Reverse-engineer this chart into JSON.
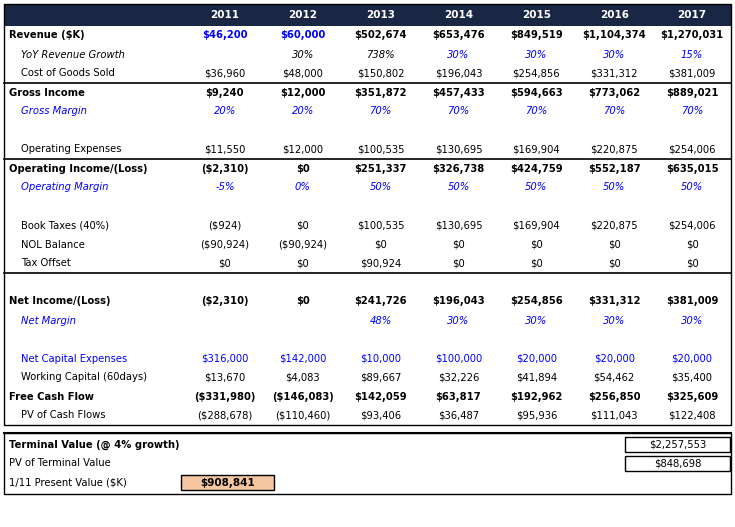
{
  "header_bg": "#1a2744",
  "header_text_color": "#ffffff",
  "black_text": "#000000",
  "blue_text": "#0000ff",
  "highlight_bg": "#f5c6a0",
  "years": [
    "2011",
    "2012",
    "2013",
    "2014",
    "2015",
    "2016",
    "2017"
  ],
  "rows": [
    {
      "label": "Revenue ($K)",
      "bold": true,
      "italic": false,
      "color": "black",
      "indent": 0,
      "values": [
        "$46,200",
        "$60,000",
        "$502,674",
        "$653,476",
        "$849,519",
        "$1,104,374",
        "$1,270,031"
      ],
      "val_colors": [
        "blue",
        "blue",
        "black",
        "black",
        "black",
        "black",
        "black"
      ],
      "border_top": false,
      "border_bottom": false
    },
    {
      "label": "YoY Revenue Growth",
      "bold": false,
      "italic": true,
      "color": "black",
      "indent": 1,
      "values": [
        "",
        "30%",
        "738%",
        "30%",
        "30%",
        "30%",
        "15%"
      ],
      "val_colors": [
        "black",
        "black",
        "black",
        "blue",
        "blue",
        "blue",
        "blue"
      ],
      "border_top": false,
      "border_bottom": false
    },
    {
      "label": "Cost of Goods Sold",
      "bold": false,
      "italic": false,
      "color": "black",
      "indent": 1,
      "values": [
        "$36,960",
        "$48,000",
        "$150,802",
        "$196,043",
        "$254,856",
        "$331,312",
        "$381,009"
      ],
      "val_colors": [
        "black",
        "black",
        "black",
        "black",
        "black",
        "black",
        "black"
      ],
      "border_top": false,
      "border_bottom": false
    },
    {
      "label": "Gross Income",
      "bold": true,
      "italic": false,
      "color": "black",
      "indent": 0,
      "values": [
        "$9,240",
        "$12,000",
        "$351,872",
        "$457,433",
        "$594,663",
        "$773,062",
        "$889,021"
      ],
      "val_colors": [
        "black",
        "black",
        "black",
        "black",
        "black",
        "black",
        "black"
      ],
      "border_top": true,
      "border_bottom": false
    },
    {
      "label": "Gross Margin",
      "bold": false,
      "italic": true,
      "color": "blue",
      "indent": 1,
      "values": [
        "20%",
        "20%",
        "70%",
        "70%",
        "70%",
        "70%",
        "70%"
      ],
      "val_colors": [
        "blue",
        "blue",
        "blue",
        "blue",
        "blue",
        "blue",
        "blue"
      ],
      "border_top": false,
      "border_bottom": false
    },
    {
      "label": "",
      "bold": false,
      "italic": false,
      "color": "black",
      "indent": 0,
      "values": [
        "",
        "",
        "",
        "",
        "",
        "",
        ""
      ],
      "val_colors": [
        "black",
        "black",
        "black",
        "black",
        "black",
        "black",
        "black"
      ],
      "border_top": false,
      "border_bottom": false
    },
    {
      "label": "Operating Expenses",
      "bold": false,
      "italic": false,
      "color": "black",
      "indent": 1,
      "values": [
        "$11,550",
        "$12,000",
        "$100,535",
        "$130,695",
        "$169,904",
        "$220,875",
        "$254,006"
      ],
      "val_colors": [
        "black",
        "black",
        "black",
        "black",
        "black",
        "black",
        "black"
      ],
      "border_top": false,
      "border_bottom": false
    },
    {
      "label": "Operating Income/(Loss)",
      "bold": true,
      "italic": false,
      "color": "black",
      "indent": 0,
      "values": [
        "($2,310)",
        "$0",
        "$251,337",
        "$326,738",
        "$424,759",
        "$552,187",
        "$635,015"
      ],
      "val_colors": [
        "black",
        "black",
        "black",
        "black",
        "black",
        "black",
        "black"
      ],
      "border_top": true,
      "border_bottom": false
    },
    {
      "label": "Operating Margin",
      "bold": false,
      "italic": true,
      "color": "blue",
      "indent": 1,
      "values": [
        "-5%",
        "0%",
        "50%",
        "50%",
        "50%",
        "50%",
        "50%"
      ],
      "val_colors": [
        "blue",
        "blue",
        "blue",
        "blue",
        "blue",
        "blue",
        "blue"
      ],
      "border_top": false,
      "border_bottom": false
    },
    {
      "label": "",
      "bold": false,
      "italic": false,
      "color": "black",
      "indent": 0,
      "values": [
        "",
        "",
        "",
        "",
        "",
        "",
        ""
      ],
      "val_colors": [
        "black",
        "black",
        "black",
        "black",
        "black",
        "black",
        "black"
      ],
      "border_top": false,
      "border_bottom": false
    },
    {
      "label": "Book Taxes (40%)",
      "bold": false,
      "italic": false,
      "color": "black",
      "indent": 1,
      "values": [
        "($924)",
        "$0",
        "$100,535",
        "$130,695",
        "$169,904",
        "$220,875",
        "$254,006"
      ],
      "val_colors": [
        "black",
        "black",
        "black",
        "black",
        "black",
        "black",
        "black"
      ],
      "border_top": false,
      "border_bottom": false
    },
    {
      "label": "NOL Balance",
      "bold": false,
      "italic": false,
      "color": "black",
      "indent": 1,
      "values": [
        "($90,924)",
        "($90,924)",
        "$0",
        "$0",
        "$0",
        "$0",
        "$0"
      ],
      "val_colors": [
        "black",
        "black",
        "black",
        "black",
        "black",
        "black",
        "black"
      ],
      "border_top": false,
      "border_bottom": false
    },
    {
      "label": "Tax Offset",
      "bold": false,
      "italic": false,
      "color": "black",
      "indent": 1,
      "values": [
        "$0",
        "$0",
        "$90,924",
        "$0",
        "$0",
        "$0",
        "$0"
      ],
      "val_colors": [
        "black",
        "black",
        "black",
        "black",
        "black",
        "black",
        "black"
      ],
      "border_top": false,
      "border_bottom": true
    },
    {
      "label": "",
      "bold": false,
      "italic": false,
      "color": "black",
      "indent": 0,
      "values": [
        "",
        "",
        "",
        "",
        "",
        "",
        ""
      ],
      "val_colors": [
        "black",
        "black",
        "black",
        "black",
        "black",
        "black",
        "black"
      ],
      "border_top": false,
      "border_bottom": false
    },
    {
      "label": "Net Income/(Loss)",
      "bold": true,
      "italic": false,
      "color": "black",
      "indent": 0,
      "values": [
        "($2,310)",
        "$0",
        "$241,726",
        "$196,043",
        "$254,856",
        "$331,312",
        "$381,009"
      ],
      "val_colors": [
        "black",
        "black",
        "black",
        "black",
        "black",
        "black",
        "black"
      ],
      "border_top": false,
      "border_bottom": false
    },
    {
      "label": "Net Margin",
      "bold": false,
      "italic": true,
      "color": "blue",
      "indent": 1,
      "values": [
        "",
        "",
        "48%",
        "30%",
        "30%",
        "30%",
        "30%"
      ],
      "val_colors": [
        "blue",
        "blue",
        "blue",
        "blue",
        "blue",
        "blue",
        "blue"
      ],
      "border_top": false,
      "border_bottom": false
    },
    {
      "label": "",
      "bold": false,
      "italic": false,
      "color": "black",
      "indent": 0,
      "values": [
        "",
        "",
        "",
        "",
        "",
        "",
        ""
      ],
      "val_colors": [
        "black",
        "black",
        "black",
        "black",
        "black",
        "black",
        "black"
      ],
      "border_top": false,
      "border_bottom": false
    },
    {
      "label": "Net Capital Expenses",
      "bold": false,
      "italic": false,
      "color": "blue",
      "indent": 1,
      "values": [
        "$316,000",
        "$142,000",
        "$10,000",
        "$100,000",
        "$20,000",
        "$20,000",
        "$20,000"
      ],
      "val_colors": [
        "blue",
        "blue",
        "blue",
        "blue",
        "blue",
        "blue",
        "blue"
      ],
      "border_top": false,
      "border_bottom": false
    },
    {
      "label": "Working Capital (60days)",
      "bold": false,
      "italic": false,
      "color": "black",
      "indent": 1,
      "values": [
        "$13,670",
        "$4,083",
        "$89,667",
        "$32,226",
        "$41,894",
        "$54,462",
        "$35,400"
      ],
      "val_colors": [
        "black",
        "black",
        "black",
        "black",
        "black",
        "black",
        "black"
      ],
      "border_top": false,
      "border_bottom": false
    },
    {
      "label": "Free Cash Flow",
      "bold": true,
      "italic": false,
      "color": "black",
      "indent": 0,
      "values": [
        "($331,980)",
        "($146,083)",
        "$142,059",
        "$63,817",
        "$192,962",
        "$256,850",
        "$325,609"
      ],
      "val_colors": [
        "black",
        "black",
        "black",
        "black",
        "black",
        "black",
        "black"
      ],
      "border_top": false,
      "border_bottom": false
    },
    {
      "label": "PV of Cash Flows",
      "bold": false,
      "italic": false,
      "color": "black",
      "indent": 1,
      "values": [
        "($288,678)",
        "($110,460)",
        "$93,406",
        "$36,487",
        "$95,936",
        "$111,043",
        "$122,408"
      ],
      "val_colors": [
        "black",
        "black",
        "black",
        "black",
        "black",
        "black",
        "black"
      ],
      "border_top": false,
      "border_bottom": false
    }
  ],
  "bottom_rows": [
    {
      "label": "Terminal Value (@ 4% growth)",
      "value": "$2,257,553",
      "bold": true,
      "highlight": false
    },
    {
      "label": "PV of Terminal Value",
      "value": "$848,698",
      "bold": false,
      "highlight": false
    },
    {
      "label": "1/11 Present Value ($K)",
      "value": "$908,841",
      "bold": false,
      "highlight": true
    }
  ]
}
